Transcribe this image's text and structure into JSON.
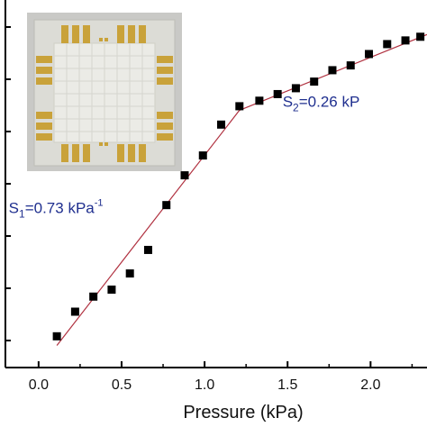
{
  "chart_data": {
    "type": "scatter",
    "xlabel": "Pressure (kPa)",
    "ylabel": "",
    "title": "",
    "xlim": [
      -0.2,
      2.34
    ],
    "ylim": [
      0,
      1
    ],
    "x_ticks": [
      0.0,
      0.5,
      1.0,
      1.5,
      2.0
    ],
    "x_tick_labels": [
      "0.0",
      "0.5",
      "1.0",
      "1.5",
      "2.0"
    ],
    "grid": false,
    "series": [
      {
        "marker": "square",
        "color": "#000000",
        "points": [
          [
            0.11,
            0.085
          ],
          [
            0.22,
            0.152
          ],
          [
            0.33,
            0.193
          ],
          [
            0.44,
            0.212
          ],
          [
            0.55,
            0.256
          ],
          [
            0.66,
            0.32
          ],
          [
            0.77,
            0.442
          ],
          [
            0.88,
            0.523
          ],
          [
            0.99,
            0.577
          ],
          [
            1.1,
            0.661
          ],
          [
            1.21,
            0.711
          ],
          [
            1.33,
            0.726
          ],
          [
            1.44,
            0.744
          ],
          [
            1.55,
            0.76
          ],
          [
            1.66,
            0.778
          ],
          [
            1.77,
            0.809
          ],
          [
            1.88,
            0.822
          ],
          [
            1.99,
            0.853
          ],
          [
            2.1,
            0.88
          ],
          [
            2.21,
            0.89
          ],
          [
            2.3,
            0.9
          ]
        ]
      }
    ],
    "fit_lines": [
      {
        "color": "#b0303f",
        "x": [
          0.11,
          1.21
        ],
        "y": [
          0.06,
          0.7
        ]
      },
      {
        "color": "#b0303f",
        "x": [
          1.21,
          2.34
        ],
        "y": [
          0.7,
          0.906
        ]
      }
    ],
    "annotations": [
      {
        "prefix": "S",
        "sub": "1",
        "text": "=0.73 kPa",
        "sup": "-1",
        "x": -0.18,
        "y": 0.42
      },
      {
        "prefix": "S",
        "sub": "2",
        "text": "=0.26 kP",
        "sup": "",
        "x": 1.47,
        "y": 0.71
      }
    ],
    "inset": {
      "type": "photo",
      "subject": "sensor-array-device"
    }
  }
}
